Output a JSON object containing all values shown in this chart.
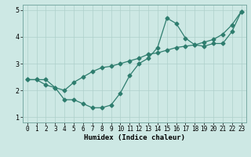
{
  "curve1_x": [
    0,
    1,
    2,
    3,
    4,
    5,
    6,
    7,
    8,
    9,
    10,
    11,
    12,
    13,
    14,
    15,
    16,
    17,
    18,
    19,
    20,
    21,
    22,
    23
  ],
  "curve1_y": [
    2.4,
    2.4,
    2.2,
    2.1,
    1.65,
    1.65,
    1.5,
    1.35,
    1.35,
    1.45,
    1.9,
    2.55,
    3.0,
    3.2,
    3.6,
    4.7,
    4.5,
    3.95,
    3.7,
    3.65,
    3.75,
    3.75,
    4.2,
    4.95
  ],
  "curve2_x": [
    0,
    1,
    2,
    3,
    4,
    5,
    6,
    7,
    8,
    9,
    10,
    11,
    12,
    13,
    14,
    15,
    16,
    17,
    18,
    19,
    20,
    21,
    22,
    23
  ],
  "curve2_y": [
    2.4,
    2.4,
    2.4,
    2.1,
    2.0,
    2.3,
    2.5,
    2.7,
    2.85,
    2.9,
    3.0,
    3.1,
    3.2,
    3.35,
    3.4,
    3.5,
    3.6,
    3.65,
    3.7,
    3.8,
    3.9,
    4.1,
    4.45,
    4.95
  ],
  "line_color": "#2e7d6e",
  "bg_color": "#cde8e4",
  "grid_color": "#aed0cb",
  "xlabel": "Humidex (Indice chaleur)",
  "xlim": [
    -0.5,
    23.5
  ],
  "ylim": [
    0.8,
    5.2
  ],
  "yticks": [
    1,
    2,
    3,
    4,
    5
  ],
  "xticks": [
    0,
    1,
    2,
    3,
    4,
    5,
    6,
    7,
    8,
    9,
    10,
    11,
    12,
    13,
    14,
    15,
    16,
    17,
    18,
    19,
    20,
    21,
    22,
    23
  ],
  "tick_fontsize": 5.5,
  "xlabel_fontsize": 6.5,
  "marker_size": 2.5,
  "line_width": 0.9
}
